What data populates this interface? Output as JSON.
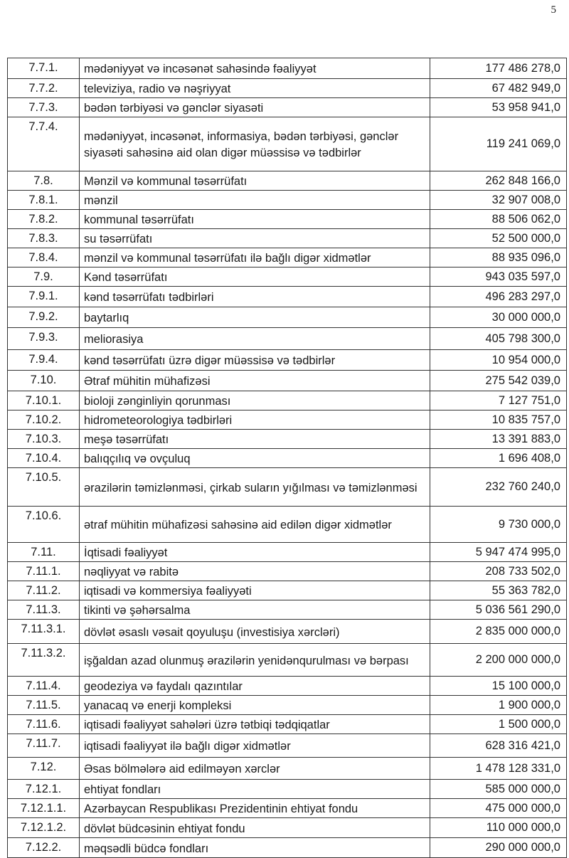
{
  "page_number": "5",
  "rows": [
    {
      "code": "7.7.1.",
      "desc": "mədəniyyət və incəsənət sahəsində fəaliyyət",
      "amount": "177 486 278,0"
    },
    {
      "code": "7.7.2.",
      "desc": "televiziya, radio və nəşriyyat",
      "amount": "67 482 949,0"
    },
    {
      "code": "7.7.3.",
      "desc": "bədən tərbiyəsi və gənclər siyasəti",
      "amount": "53 958 941,0"
    },
    {
      "code": "7.7.4.",
      "desc": "mədəniyyət, incəsənət, informasiya, bədən tərbiyəsi, gənclər siyasəti sahəsinə aid olan digər müəssisə və tədbirlər",
      "amount": "119 241 069,0"
    },
    {
      "code": "7.8.",
      "desc": "Mənzil və kommunal təsərrüfatı",
      "amount": "262 848 166,0"
    },
    {
      "code": "7.8.1.",
      "desc": "mənzil",
      "amount": "32 907 008,0"
    },
    {
      "code": "7.8.2.",
      "desc": "kommunal təsərrüfatı",
      "amount": "88 506 062,0"
    },
    {
      "code": "7.8.3.",
      "desc": "su təsərrüfatı",
      "amount": "52 500 000,0"
    },
    {
      "code": "7.8.4.",
      "desc": "mənzil və kommunal təsərrüfatı ilə bağlı digər xidmətlər",
      "amount": "88 935 096,0"
    },
    {
      "code": "7.9.",
      "desc": "Kənd təsərrüfatı",
      "amount": "943 035 597,0"
    },
    {
      "code": "7.9.1.",
      "desc": "kənd təsərrüfatı tədbirləri",
      "amount": "496 283 297,0"
    },
    {
      "code": "7.9.2.",
      "desc": "baytarlıq",
      "amount": "30 000 000,0"
    },
    {
      "code": "7.9.3.",
      "desc": "meliorasiya",
      "amount": "405 798 300,0"
    },
    {
      "code": "7.9.4.",
      "desc": "kənd təsərrüfatı üzrə digər müəssisə və tədbirlər",
      "amount": "10 954 000,0"
    },
    {
      "code": "7.10.",
      "desc": "Ətraf mühitin mühafizəsi",
      "amount": "275 542 039,0"
    },
    {
      "code": "7.10.1.",
      "desc": "bioloji zənginliyin qorunması",
      "amount": "7 127 751,0"
    },
    {
      "code": "7.10.2.",
      "desc": "hidrometeorologiya tədbirləri",
      "amount": "10 835 757,0"
    },
    {
      "code": "7.10.3.",
      "desc": "meşə təsərrüfatı",
      "amount": "13 391 883,0"
    },
    {
      "code": "7.10.4.",
      "desc": "balıqçılıq və ovçuluq",
      "amount": "1 696 408,0"
    },
    {
      "code": "7.10.5.",
      "desc": "ərazilərin təmizlənməsi, çirkab suların yığılması və təmizlənməsi",
      "amount": "232 760 240,0"
    },
    {
      "code": "7.10.6.",
      "desc": "ətraf mühitin mühafizəsi sahəsinə aid edilən digər xidmətlər",
      "amount": "9 730 000,0"
    },
    {
      "code": "7.11.",
      "desc": "İqtisadi fəaliyyət",
      "amount": "5 947 474 995,0"
    },
    {
      "code": "7.11.1.",
      "desc": "nəqliyyat və rabitə",
      "amount": "208 733 502,0"
    },
    {
      "code": "7.11.2.",
      "desc": "iqtisadi və kommersiya fəaliyyəti",
      "amount": "55 363 782,0"
    },
    {
      "code": "7.11.3.",
      "desc": "tikinti və şəhərsalma",
      "amount": "5 036 561 290,0"
    },
    {
      "code": "7.11.3.1.",
      "desc": "dövlət əsaslı vəsait qoyuluşu (investisiya xərcləri)",
      "amount": "2 835 000 000,0"
    },
    {
      "code": "7.11.3.2.",
      "desc": "işğaldan azad olunmuş ərazilərin yenidənqurulması və bərpası",
      "amount": "2 200 000 000,0"
    },
    {
      "code": "7.11.4.",
      "desc": "geodeziya və faydalı qazıntılar",
      "amount": "15 100 000,0"
    },
    {
      "code": "7.11.5.",
      "desc": "yanacaq və enerji kompleksi",
      "amount": "1 900 000,0"
    },
    {
      "code": "7.11.6.",
      "desc": "iqtisadi fəaliyyət sahələri üzrə tətbiqi tədqiqatlar",
      "amount": "1 500 000,0"
    },
    {
      "code": "7.11.7.",
      "desc": "iqtisadi fəaliyyət ilə bağlı digər xidmətlər",
      "amount": "628 316 421,0"
    },
    {
      "code": "7.12.",
      "desc": "Əsas bölmələrə aid edilməyən xərclər",
      "amount": "1 478 128 331,0"
    },
    {
      "code": "7.12.1.",
      "desc": "ehtiyat fondları",
      "amount": "585 000 000,0"
    },
    {
      "code": "7.12.1.1.",
      "desc": "Azərbaycan Respublikası Prezidentinin ehtiyat fondu",
      "amount": "475 000 000,0"
    },
    {
      "code": "7.12.1.2.",
      "desc": "dövlət büdcəsinin ehtiyat fondu",
      "amount": "110 000 000,0"
    },
    {
      "code": "7.12.2.",
      "desc": "məqsədli büdcə fondları",
      "amount": "290 000 000,0"
    }
  ]
}
